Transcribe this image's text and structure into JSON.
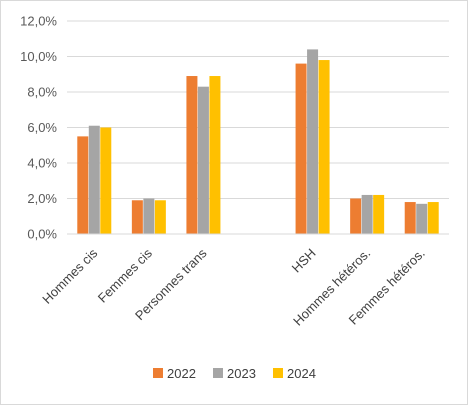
{
  "chart_data": {
    "type": "bar",
    "categories": [
      "Hommes cis",
      "Femmes cis",
      "Personnes trans",
      "",
      "HSH",
      "Hommes hétéros.",
      "Femmes hétéros."
    ],
    "series": [
      {
        "name": "2022",
        "color": "#ED7D31",
        "values": [
          5.5,
          1.9,
          8.9,
          null,
          9.6,
          2.0,
          1.8
        ]
      },
      {
        "name": "2023",
        "color": "#A5A5A5",
        "values": [
          6.1,
          2.0,
          8.3,
          null,
          10.4,
          2.2,
          1.7
        ]
      },
      {
        "name": "2024",
        "color": "#FFC000",
        "values": [
          6.0,
          1.9,
          8.9,
          null,
          9.8,
          2.2,
          1.8
        ]
      }
    ],
    "ylim": [
      0,
      12
    ],
    "yticks": [
      0,
      2,
      4,
      6,
      8,
      10,
      12
    ],
    "ytick_labels": [
      "0,0%",
      "2,0%",
      "4,0%",
      "6,0%",
      "8,0%",
      "10,0%",
      "12,0%"
    ],
    "gridlines": true,
    "legend_position": "bottom",
    "title": "",
    "xlabel": "",
    "ylabel": ""
  }
}
